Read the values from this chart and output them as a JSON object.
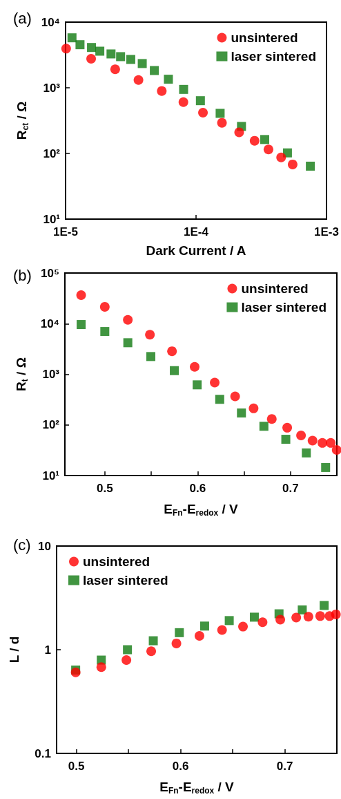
{
  "chart_data": [
    {
      "type": "scatter",
      "title": "(a)",
      "xlabel": "Dark Current / A",
      "ylabel": "R$_{ct}$ / Ω",
      "log": "xy",
      "legend": "top right",
      "grid": false,
      "xlim": [
        1e-05,
        0.001
      ],
      "xticks": [
        {
          "value": 1e-05,
          "label": "1E-5"
        },
        {
          "value": 0.0001,
          "label": "1E-4"
        },
        {
          "value": 0.001,
          "label": "1E-3"
        }
      ],
      "ylim": [
        10,
        10000
      ],
      "yticks": [
        {
          "value": 10,
          "label": "10¹"
        },
        {
          "value": 100,
          "label": "10²"
        },
        {
          "value": 1000,
          "label": "10³"
        },
        {
          "value": 10000,
          "label": "10⁴"
        }
      ],
      "series": [
        {
          "name": "unsintered",
          "color": "#ff0000",
          "marker": "circle",
          "x": [
            1.01e-05,
            1.57e-05,
            2.4e-05,
            3.62e-05,
            5.46e-05,
            8e-05,
            0.000113,
            0.000158,
            0.000214,
            0.000281,
            0.000359,
            0.000449,
            0.00055
          ],
          "values": [
            3950,
            2770,
            1910,
            1315,
            893,
            605,
            418,
            293,
            210,
            156,
            115,
            87,
            68
          ]
        },
        {
          "name": "laser sintered",
          "color": "#117a11",
          "marker": "square",
          "x": [
            1.12e-05,
            1.29e-05,
            1.58e-05,
            1.83e-05,
            2.23e-05,
            2.64e-05,
            3.16e-05,
            3.87e-05,
            4.79e-05,
            6.14e-05,
            8.03e-05,
            0.000108,
            0.000153,
            0.000223,
            0.000336,
            0.000502,
            0.000752
          ],
          "values": [
            5770,
            4530,
            4110,
            3610,
            3280,
            2980,
            2700,
            2340,
            1830,
            1350,
            945,
            636,
            408,
            258,
            163,
            102,
            64
          ]
        }
      ]
    },
    {
      "type": "scatter",
      "title": "(b)",
      "xlabel": "E$_{Fn}$-E$_{redox}$ / V",
      "ylabel": "R$_{t}$ / Ω",
      "log": "y",
      "legend": "top right",
      "grid": false,
      "xlim": [
        0.457,
        0.75
      ],
      "xticks": [
        0.5,
        {
          "value": 0.55,
          "label": null
        },
        0.6,
        {
          "value": 0.65,
          "label": null
        },
        0.7
      ],
      "ylim": [
        10,
        100000
      ],
      "yticks": [
        {
          "value": 10,
          "label": "10¹"
        },
        {
          "value": 100,
          "label": "10²"
        },
        {
          "value": 1000,
          "label": "10³"
        },
        {
          "value": 10000,
          "label": "10⁴"
        },
        {
          "value": 100000,
          "label": "10⁵"
        }
      ],
      "series": [
        {
          "name": "unsintered",
          "color": "#ff0000",
          "marker": "circle",
          "x": [
            0.4745,
            0.5,
            0.5248,
            0.5486,
            0.5724,
            0.5968,
            0.6184,
            0.6404,
            0.6603,
            0.6799,
            0.6965,
            0.7114,
            0.7238,
            0.7344,
            0.7434,
            0.7498
          ],
          "values": [
            36600,
            21500,
            11900,
            6050,
            2850,
            1400,
            685,
            366,
            212,
            131,
            88,
            62,
            49,
            44,
            44,
            32
          ]
        },
        {
          "name": "laser sintered",
          "color": "#117a11",
          "marker": "square",
          "x": [
            0.4745,
            0.5,
            0.5248,
            0.5496,
            0.5749,
            0.5995,
            0.6238,
            0.6472,
            0.6714,
            0.695,
            0.7171,
            0.7379
          ],
          "values": [
            9600,
            7000,
            4200,
            2240,
            1180,
            618,
            320,
            172,
            94,
            52,
            28,
            14.4
          ]
        }
      ]
    },
    {
      "type": "scatter",
      "title": "(c)",
      "xlabel": "E$_{Fn}$-E$_{redox}$ / V",
      "ylabel": "L / d",
      "log": "y",
      "legend": "top left",
      "grid": false,
      "xlim": [
        0.481,
        0.75
      ],
      "xticks": [
        0.5,
        {
          "value": 0.55,
          "label": null
        },
        0.6,
        {
          "value": 0.65,
          "label": null
        },
        0.7
      ],
      "ylim": [
        0.1,
        10
      ],
      "yticks": [
        0.1,
        1,
        10
      ],
      "series": [
        {
          "name": "unsintered",
          "color": "#ff0000",
          "marker": "circle",
          "x": [
            0.4993,
            0.5239,
            0.548,
            0.5718,
            0.596,
            0.6181,
            0.6398,
            0.6599,
            0.6787,
            0.6957,
            0.711,
            0.7227,
            0.734,
            0.743,
            0.7491
          ],
          "values": [
            0.605,
            0.679,
            0.794,
            0.966,
            1.15,
            1.36,
            1.55,
            1.67,
            1.84,
            1.95,
            2.04,
            2.08,
            2.11,
            2.11,
            2.19
          ]
        },
        {
          "name": "laser sintered",
          "color": "#117a11",
          "marker": "square",
          "x": [
            0.4993,
            0.5239,
            0.549,
            0.5738,
            0.5988,
            0.6231,
            0.6467,
            0.6708,
            0.6945,
            0.7168,
            0.7378
          ],
          "values": [
            0.637,
            0.794,
            1.0,
            1.22,
            1.46,
            1.69,
            1.91,
            2.06,
            2.22,
            2.42,
            2.67
          ]
        }
      ]
    }
  ]
}
